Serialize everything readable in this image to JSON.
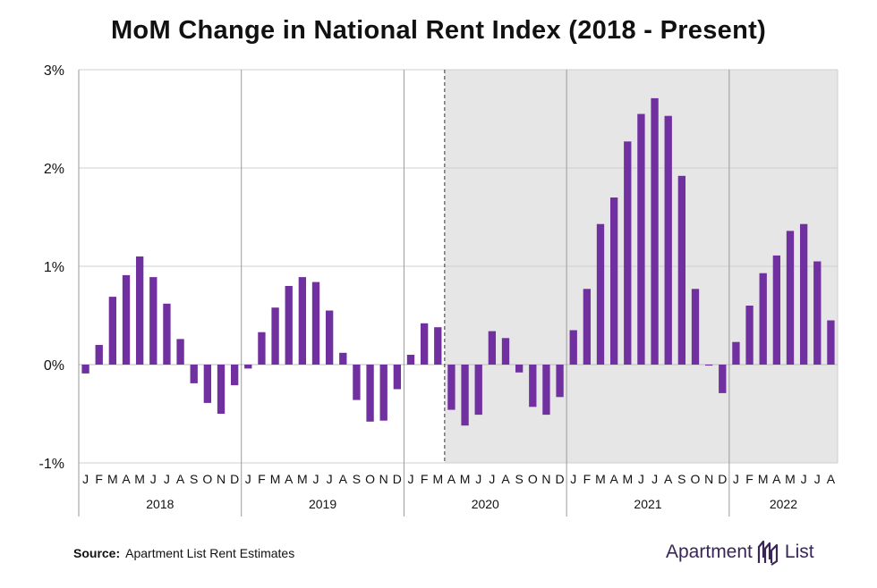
{
  "chart_data": {
    "type": "bar",
    "title": "MoM Change in National Rent Index (2018 - Present)",
    "ylim": [
      -1,
      3
    ],
    "yticks": [
      -1,
      0,
      1,
      2,
      3
    ],
    "ytick_labels": [
      "-1%",
      "0%",
      "1%",
      "2%",
      "3%"
    ],
    "month_labels": [
      "J",
      "F",
      "M",
      "A",
      "M",
      "J",
      "J",
      "A",
      "S",
      "O",
      "N",
      "D"
    ],
    "years": [
      {
        "label": "2018",
        "values": [
          -0.09,
          0.2,
          0.69,
          0.91,
          1.1,
          0.89,
          0.62,
          0.26,
          -0.19,
          -0.39,
          -0.5,
          -0.21
        ]
      },
      {
        "label": "2019",
        "values": [
          -0.04,
          0.33,
          0.58,
          0.8,
          0.89,
          0.84,
          0.55,
          0.12,
          -0.36,
          -0.58,
          -0.57,
          -0.25
        ]
      },
      {
        "label": "2020",
        "values": [
          0.1,
          0.42,
          0.38,
          -0.46,
          -0.62,
          -0.51,
          0.34,
          0.27,
          -0.08,
          -0.43,
          -0.51,
          -0.33
        ]
      },
      {
        "label": "2021",
        "values": [
          0.35,
          0.77,
          1.43,
          1.7,
          2.27,
          2.55,
          2.71,
          2.53,
          1.92,
          0.77,
          -0.01,
          -0.29
        ]
      },
      {
        "label": "2022",
        "values": [
          0.23,
          0.6,
          0.93,
          1.11,
          1.36,
          1.43,
          1.05,
          0.45
        ]
      }
    ],
    "shaded_period_start": "2020 April",
    "dashed_line_at": "2020 April",
    "bar_color": "#7030a0",
    "shade_color": "#e6e6e6"
  },
  "footer": {
    "source_label": "Source:",
    "source_text": "Apartment List Rent Estimates"
  },
  "brand": {
    "left": "Apartment",
    "right": "List"
  }
}
